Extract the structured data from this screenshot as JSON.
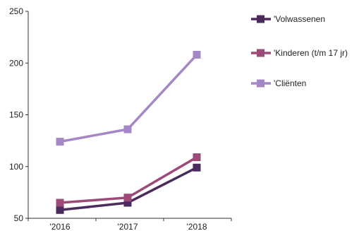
{
  "colors": {
    "volwassenen": "#4b2b5e",
    "kinderen": "#9d4a79",
    "clienten": "#a487c4",
    "axis": "#333333"
  },
  "chart_data": {
    "type": "line",
    "x": [
      "'2016",
      "'2017",
      "'2018"
    ],
    "ylim": [
      50,
      250
    ],
    "yticks": [
      50,
      100,
      150,
      200,
      250
    ],
    "grid": false,
    "legend_position": "right",
    "series": [
      {
        "name": "'Volwassenen",
        "color_key": "volwassenen",
        "values": [
          58,
          65,
          99
        ]
      },
      {
        "name": "'Kinderen (t/m 17 jr)",
        "color_key": "kinderen",
        "values": [
          65,
          70,
          109
        ]
      },
      {
        "name": "'Cliënten",
        "color_key": "clienten",
        "values": [
          124,
          136,
          208
        ]
      }
    ]
  }
}
